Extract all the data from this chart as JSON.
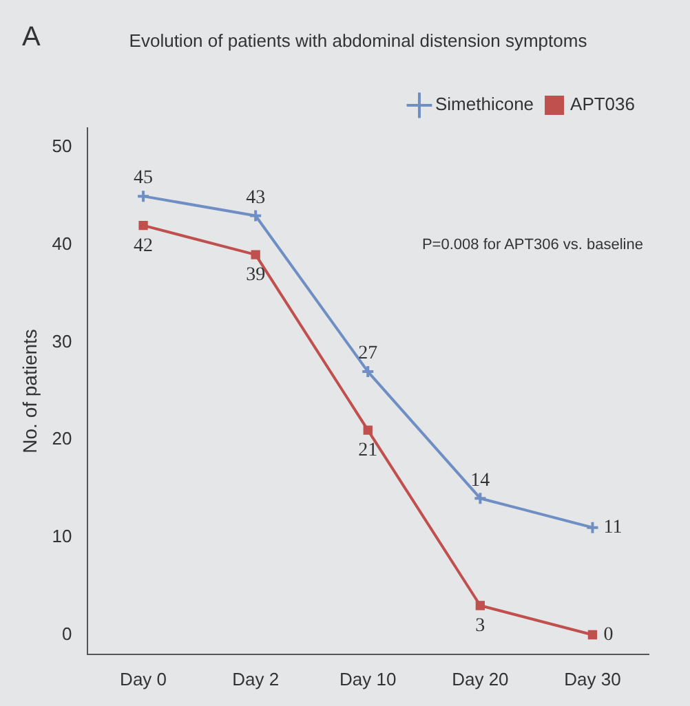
{
  "chart_data": {
    "type": "line",
    "title": "Evolution of patients with abdominal distension symptoms",
    "ylabel": "No. of patients",
    "categories": [
      "Day 0",
      "Day 2",
      "Day 10",
      "Day 20",
      "Day 30"
    ],
    "series": [
      {
        "name": "Simethicone",
        "color": "#6f8fc4",
        "marker": "cross",
        "values": [
          45,
          43,
          27,
          14,
          11
        ]
      },
      {
        "name": "APT036",
        "color": "#c0504d",
        "marker": "square",
        "values": [
          42,
          39,
          21,
          3,
          0
        ]
      }
    ],
    "ylim": [
      -2,
      52
    ],
    "yticks": [
      0,
      10,
      20,
      30,
      40,
      50
    ],
    "grid": false,
    "legend": "top right",
    "data_labels": true,
    "annotations": [
      "A",
      "P=0.008 for APT306 vs. baseline"
    ]
  }
}
